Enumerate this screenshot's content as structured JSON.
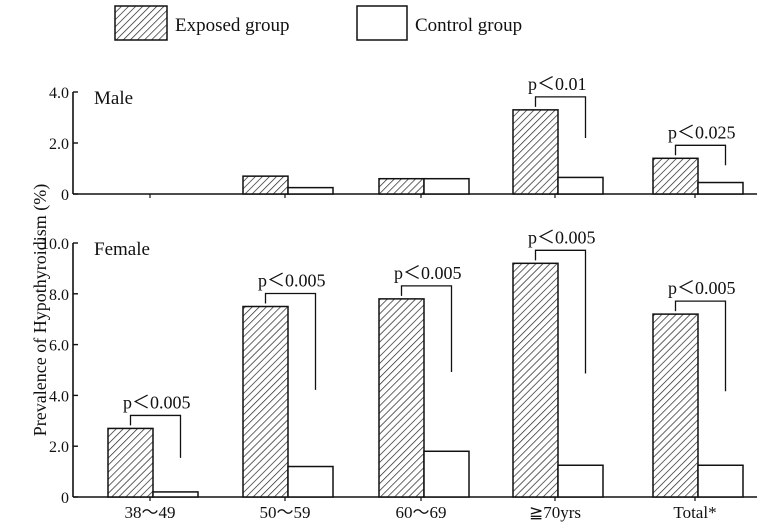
{
  "legend": {
    "exposed": "Exposed group",
    "control": "Control group"
  },
  "ylabel": "Prevalence of Hypothyroidism (%)",
  "colors": {
    "ink": "#111111",
    "fill_control": "#ffffff"
  },
  "chart_data": [
    {
      "type": "bar",
      "panel_label": "Male",
      "categories": [
        "38～49",
        "50～59",
        "60～69",
        "≧70yrs",
        "Total*"
      ],
      "series": [
        {
          "name": "Exposed group",
          "values": [
            0.0,
            0.7,
            0.6,
            3.3,
            1.4
          ]
        },
        {
          "name": "Control group",
          "values": [
            0.0,
            0.25,
            0.6,
            0.65,
            0.45
          ]
        }
      ],
      "ylim": [
        0,
        4.0
      ],
      "yticks": [
        "0",
        "2.0",
        "4.0"
      ],
      "annotations": [
        {
          "category_index": 3,
          "text": "p＜0.01"
        },
        {
          "category_index": 4,
          "text": "p＜0.025"
        }
      ]
    },
    {
      "type": "bar",
      "panel_label": "Female",
      "categories": [
        "38～49",
        "50～59",
        "60～69",
        "≧70yrs",
        "Total*"
      ],
      "series": [
        {
          "name": "Exposed group",
          "values": [
            2.7,
            7.5,
            7.8,
            9.2,
            7.2
          ]
        },
        {
          "name": "Control group",
          "values": [
            0.2,
            1.2,
            1.8,
            1.25,
            1.25
          ]
        }
      ],
      "ylim": [
        0,
        10.0
      ],
      "yticks": [
        "0",
        "2.0",
        "4.0",
        "6.0",
        "8.0",
        "10.0"
      ],
      "xticks": [
        "38～49",
        "50～59",
        "60～69",
        "≧70yrs",
        "Total*"
      ],
      "annotations": [
        {
          "category_index": 0,
          "text": "p＜0.005"
        },
        {
          "category_index": 1,
          "text": "p＜0.005"
        },
        {
          "category_index": 2,
          "text": "p＜0.005"
        },
        {
          "category_index": 3,
          "text": "p＜0.005"
        },
        {
          "category_index": 4,
          "text": "p＜0.005"
        }
      ]
    }
  ]
}
